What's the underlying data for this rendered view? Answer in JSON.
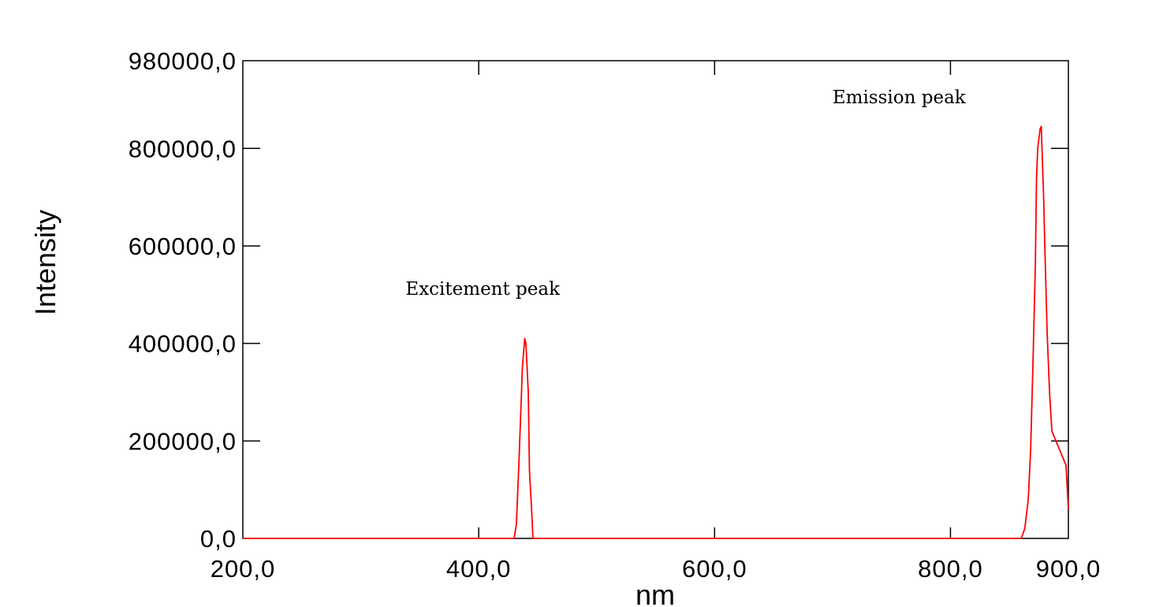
{
  "chart_data": {
    "type": "line",
    "title": "",
    "xlabel": "nm",
    "ylabel": "Intensity",
    "xlim": [
      200,
      900
    ],
    "ylim": [
      0,
      980000
    ],
    "grid": false,
    "x_ticks": [
      {
        "value": 200,
        "label": "200,0"
      },
      {
        "value": 400,
        "label": "400,0"
      },
      {
        "value": 600,
        "label": "600,0"
      },
      {
        "value": 800,
        "label": "800,0"
      },
      {
        "value": 900,
        "label": "900,0"
      }
    ],
    "y_ticks": [
      {
        "value": 0,
        "label": "0,0"
      },
      {
        "value": 200000,
        "label": "200000,0"
      },
      {
        "value": 400000,
        "label": "400000,0"
      },
      {
        "value": 600000,
        "label": "600000,0"
      },
      {
        "value": 800000,
        "label": "800000,0"
      },
      {
        "value": 980000,
        "label": "980000,0"
      }
    ],
    "series": [
      {
        "color": "#ff0000",
        "points": [
          [
            200,
            0
          ],
          [
            430,
            0
          ],
          [
            432,
            30000
          ],
          [
            434,
            150000
          ],
          [
            436,
            280000
          ],
          [
            437,
            350000
          ],
          [
            439,
            410000
          ],
          [
            440,
            400000
          ],
          [
            442,
            300000
          ],
          [
            443,
            140000
          ],
          [
            445,
            50000
          ],
          [
            446,
            0
          ],
          [
            845,
            0
          ],
          [
            860,
            0
          ],
          [
            863,
            20000
          ],
          [
            866,
            80000
          ],
          [
            868,
            180000
          ],
          [
            870,
            360000
          ],
          [
            872,
            560000
          ],
          [
            873,
            740000
          ],
          [
            874,
            800000
          ],
          [
            876,
            840000
          ],
          [
            877,
            845000
          ],
          [
            879,
            700000
          ],
          [
            880,
            600000
          ],
          [
            882,
            420000
          ],
          [
            884,
            300000
          ],
          [
            886,
            220000
          ],
          [
            898,
            150000
          ],
          [
            900,
            60000
          ]
        ]
      }
    ],
    "annotations": [
      {
        "text": "Excitement peak",
        "x": 338,
        "y": 500000
      },
      {
        "text": "Emission peak",
        "x": 700,
        "y": 893000
      }
    ]
  }
}
